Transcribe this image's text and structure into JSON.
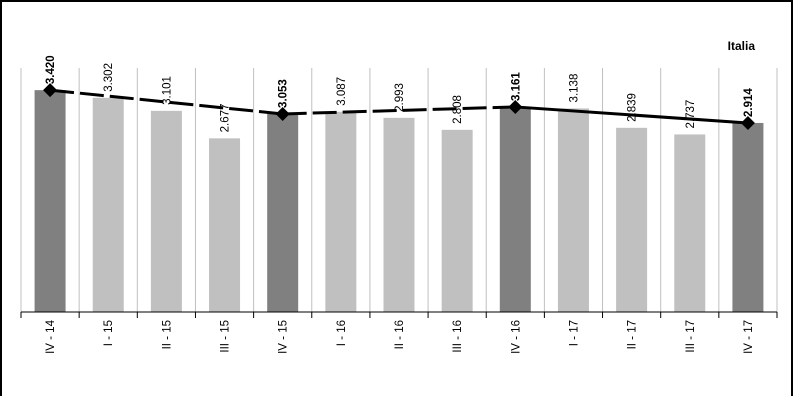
{
  "chart_data": {
    "type": "bar",
    "series_name": "Italia",
    "categories": [
      "IV - 14",
      "I - 15",
      "II - 15",
      "III - 15",
      "IV - 15",
      "I - 16",
      "II - 16",
      "III - 16",
      "IV - 16",
      "I - 17",
      "II - 17",
      "III - 17",
      "IV - 17"
    ],
    "values": [
      3420,
      3302,
      3101,
      2677,
      3053,
      3087,
      2993,
      2808,
      3161,
      3138,
      2839,
      2737,
      2914
    ],
    "value_labels": [
      "3.420",
      "3.302",
      "3.101",
      "2.677",
      "3.053",
      "3.087",
      "2.993",
      "2.808",
      "3.161",
      "3.138",
      "2.839",
      "2.737",
      "2.914"
    ],
    "highlighted_quarters": [
      "IV - 14",
      "IV - 15",
      "IV - 16",
      "IV - 17"
    ],
    "line_points": [
      "IV - 14",
      "IV - 15",
      "IV - 16",
      "IV - 17"
    ],
    "line_segments_dashed": [
      true,
      true,
      false
    ],
    "ylim": [
      0,
      3900
    ],
    "grid": "vertical",
    "colors": {
      "highlight_bar": "#808080",
      "normal_bar": "#c0c0c0",
      "line": "#000000",
      "grid": "#c0c0c0"
    }
  }
}
